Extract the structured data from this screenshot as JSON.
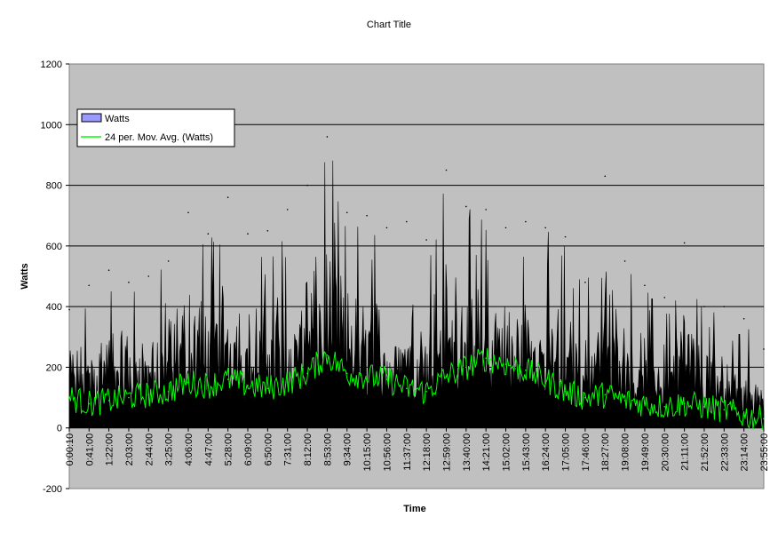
{
  "chart_data": {
    "type": "area",
    "title": "Chart Title",
    "xlabel": "Time",
    "ylabel": "Watts",
    "ylim": [
      -200,
      1200
    ],
    "yticks": [
      -200,
      0,
      200,
      400,
      600,
      800,
      1000,
      1200
    ],
    "ytick_labels": [
      "-200",
      "0",
      "200",
      "400",
      "600",
      "800",
      "1000",
      "1200"
    ],
    "grid": true,
    "legend_position": "top-left",
    "colors": {
      "plot_bg": "#c0c0c0",
      "watts_fill": "#000000",
      "watts_legend_swatch": "#9999ff",
      "moving_avg": "#00ff00"
    },
    "x_range": [
      "0:00:10",
      "23:55:00"
    ],
    "x_tick_labels": [
      "0:00:10",
      "0:41:00",
      "1:22:00",
      "2:03:00",
      "2:44:00",
      "3:25:00",
      "4:06:00",
      "4:47:00",
      "5:28:00",
      "6:09:00",
      "6:50:00",
      "7:31:00",
      "8:12:00",
      "8:53:00",
      "9:34:00",
      "10:15:00",
      "10:56:00",
      "11:37:00",
      "12:18:00",
      "12:59:00",
      "13:40:00",
      "14:21:00",
      "15:02:00",
      "15:43:00",
      "16:24:00",
      "17:05:00",
      "17:46:00",
      "18:27:00",
      "19:08:00",
      "19:49:00",
      "20:30:00",
      "21:11:00",
      "21:52:00",
      "22:33:00",
      "23:14:00",
      "23:55:00"
    ],
    "series": [
      {
        "name": "Watts",
        "kind": "area",
        "x": [
          "0:00:10",
          "0:41:00",
          "1:22:00",
          "2:03:00",
          "2:44:00",
          "3:25:00",
          "4:06:00",
          "4:47:00",
          "5:28:00",
          "6:09:00",
          "6:50:00",
          "7:31:00",
          "8:12:00",
          "8:53:00",
          "9:34:00",
          "10:15:00",
          "10:56:00",
          "11:37:00",
          "12:18:00",
          "12:59:00",
          "13:40:00",
          "14:21:00",
          "15:02:00",
          "15:43:00",
          "16:24:00",
          "17:05:00",
          "17:46:00",
          "18:27:00",
          "19:08:00",
          "19:49:00",
          "20:30:00",
          "21:11:00",
          "21:52:00",
          "22:33:00",
          "23:14:00",
          "23:55:00"
        ],
        "values": [
          390,
          470,
          520,
          480,
          500,
          550,
          710,
          640,
          760,
          640,
          650,
          720,
          800,
          960,
          710,
          700,
          660,
          680,
          620,
          850,
          730,
          720,
          660,
          680,
          660,
          630,
          480,
          830,
          550,
          470,
          430,
          610,
          400,
          400,
          360,
          260
        ]
      },
      {
        "name": "24 per. Mov. Avg. (Watts)",
        "kind": "line",
        "x": [
          "0:00:10",
          "0:41:00",
          "1:22:00",
          "2:03:00",
          "2:44:00",
          "3:25:00",
          "4:06:00",
          "4:47:00",
          "5:28:00",
          "6:09:00",
          "6:50:00",
          "7:31:00",
          "8:12:00",
          "8:53:00",
          "9:34:00",
          "10:15:00",
          "10:56:00",
          "11:37:00",
          "12:18:00",
          "12:59:00",
          "13:40:00",
          "14:21:00",
          "15:02:00",
          "15:43:00",
          "16:24:00",
          "17:05:00",
          "17:46:00",
          "18:27:00",
          "19:08:00",
          "19:49:00",
          "20:30:00",
          "21:11:00",
          "21:52:00",
          "22:33:00",
          "23:14:00",
          "23:55:00"
        ],
        "values": [
          100,
          80,
          90,
          100,
          110,
          120,
          150,
          140,
          160,
          140,
          130,
          150,
          180,
          240,
          180,
          170,
          160,
          130,
          120,
          170,
          200,
          230,
          210,
          190,
          160,
          120,
          100,
          110,
          90,
          80,
          70,
          80,
          70,
          60,
          40,
          30
        ]
      }
    ]
  }
}
